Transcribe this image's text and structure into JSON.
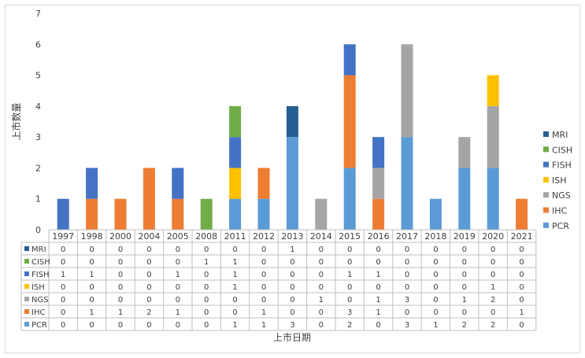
{
  "chart_data": {
    "type": "bar",
    "stacked": true,
    "categories": [
      "1997",
      "1998",
      "2000",
      "2004",
      "2005",
      "2008",
      "2011",
      "2012",
      "2013",
      "2014",
      "2015",
      "2016",
      "2017",
      "2018",
      "2019",
      "2020",
      "2021"
    ],
    "series": [
      {
        "name": "PCR",
        "color": "#5b9bd5",
        "values": [
          0,
          0,
          0,
          0,
          0,
          0,
          1,
          1,
          3,
          0,
          2,
          0,
          3,
          1,
          2,
          2,
          0
        ]
      },
      {
        "name": "IHC",
        "color": "#ed7d31",
        "values": [
          0,
          1,
          1,
          2,
          1,
          0,
          0,
          1,
          0,
          0,
          3,
          1,
          0,
          0,
          0,
          0,
          1
        ]
      },
      {
        "name": "NGS",
        "color": "#a5a5a5",
        "values": [
          0,
          0,
          0,
          0,
          0,
          0,
          0,
          0,
          0,
          1,
          0,
          1,
          3,
          0,
          1,
          2,
          0
        ]
      },
      {
        "name": "ISH",
        "color": "#ffc000",
        "values": [
          0,
          0,
          0,
          0,
          0,
          0,
          1,
          0,
          0,
          0,
          0,
          0,
          0,
          0,
          0,
          1,
          0
        ]
      },
      {
        "name": "FISH",
        "color": "#4472c4",
        "values": [
          1,
          1,
          0,
          0,
          1,
          0,
          1,
          0,
          0,
          0,
          1,
          1,
          0,
          0,
          0,
          0,
          0
        ]
      },
      {
        "name": "CISH",
        "color": "#70ad47",
        "values": [
          0,
          0,
          0,
          0,
          0,
          1,
          1,
          0,
          0,
          0,
          0,
          0,
          0,
          0,
          0,
          0,
          0
        ]
      },
      {
        "name": "MRI",
        "color": "#255e91",
        "values": [
          0,
          0,
          0,
          0,
          0,
          0,
          0,
          0,
          1,
          0,
          0,
          0,
          0,
          0,
          0,
          0,
          0
        ]
      }
    ],
    "table_rows": [
      "MRI",
      "CISH",
      "FISH",
      "ISH",
      "NGS",
      "IHC",
      "PCR"
    ],
    "legend_order": [
      "MRI",
      "CISH",
      "FISH",
      "ISH",
      "NGS",
      "IHC",
      "PCR"
    ],
    "legend_position": "right",
    "ylim": [
      0,
      7
    ],
    "yticks": [
      0,
      1,
      2,
      3,
      4,
      5,
      6,
      7
    ],
    "ylabel": "上市数量",
    "xlabel": "上市日期",
    "grid": false
  }
}
